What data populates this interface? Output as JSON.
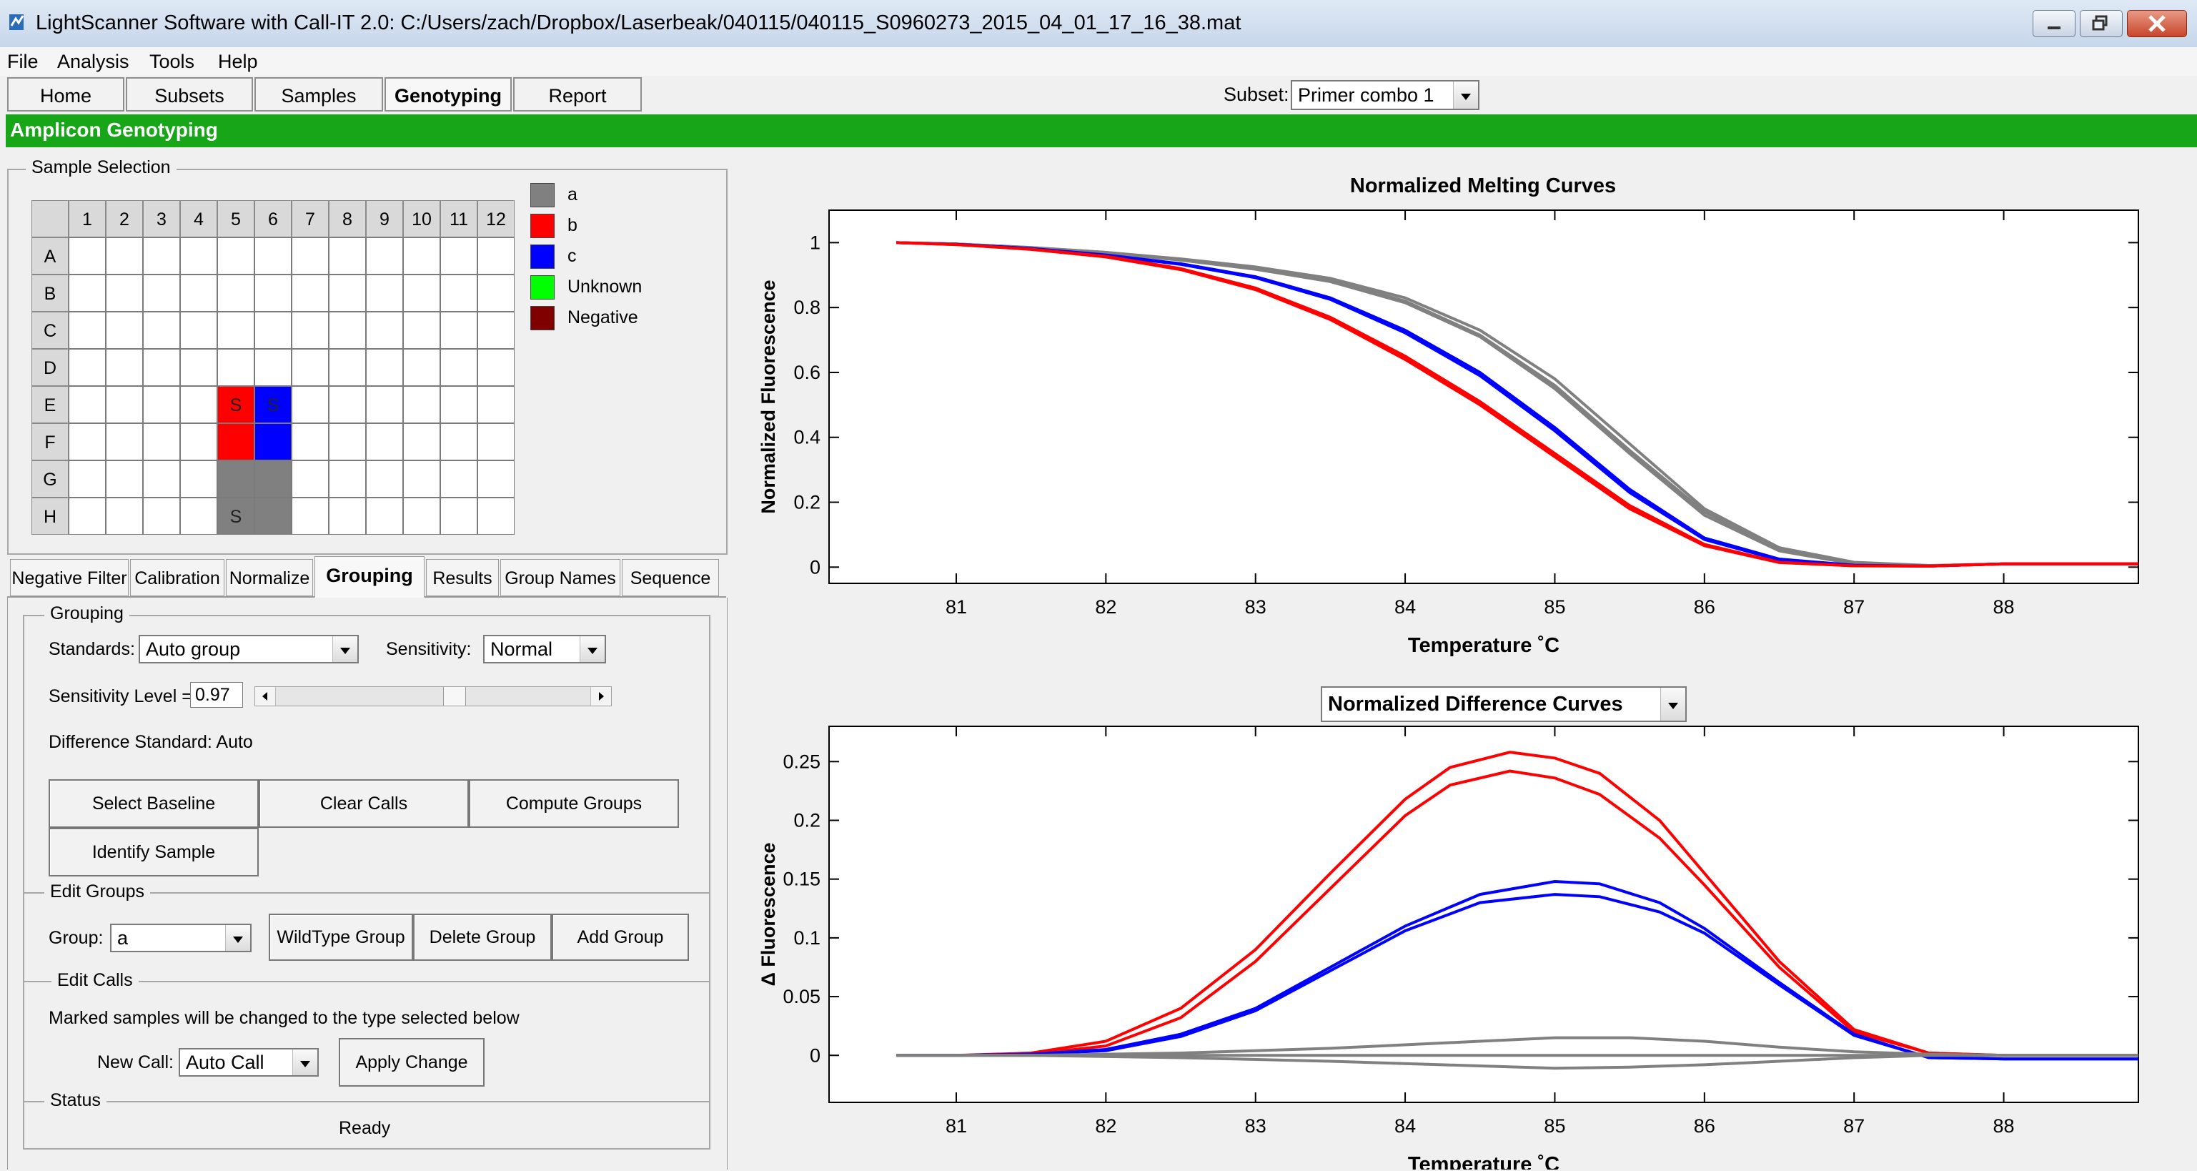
{
  "window": {
    "title": "LightScanner Software with Call-IT 2.0: C:/Users/zach/Dropbox/Laserbeak/040115/040115_S0960273_2015_04_01_17_16_38.mat"
  },
  "menu": [
    "File",
    "Analysis",
    "Tools",
    "Help"
  ],
  "top_tabs": [
    "Home",
    "Subsets",
    "Samples",
    "Genotyping",
    "Report"
  ],
  "active_top_tab": "Genotyping",
  "subset": {
    "label": "Subset:",
    "value": "Primer combo 1"
  },
  "banner": "Amplicon Genotyping",
  "sample_selection": {
    "title": "Sample Selection",
    "columns": [
      "1",
      "2",
      "3",
      "4",
      "5",
      "6",
      "7",
      "8",
      "9",
      "10",
      "11",
      "12"
    ],
    "rows": [
      "A",
      "B",
      "C",
      "D",
      "E",
      "F",
      "G",
      "H"
    ],
    "wells": [
      {
        "row": "E",
        "col": "5",
        "group": "b",
        "mark": "S"
      },
      {
        "row": "E",
        "col": "6",
        "group": "c",
        "mark": "S"
      },
      {
        "row": "F",
        "col": "5",
        "group": "b",
        "mark": ""
      },
      {
        "row": "F",
        "col": "6",
        "group": "c",
        "mark": ""
      },
      {
        "row": "G",
        "col": "5",
        "group": "a",
        "mark": ""
      },
      {
        "row": "G",
        "col": "6",
        "group": "a",
        "mark": ""
      },
      {
        "row": "H",
        "col": "5",
        "group": "a",
        "mark": "S"
      },
      {
        "row": "H",
        "col": "6",
        "group": "a",
        "mark": ""
      }
    ],
    "legend": [
      {
        "label": "a",
        "color": "#808080"
      },
      {
        "label": "b",
        "color": "#ff0000"
      },
      {
        "label": "c",
        "color": "#0000ff"
      },
      {
        "label": "Unknown",
        "color": "#00ff00"
      },
      {
        "label": "Negative",
        "color": "#800000"
      }
    ]
  },
  "analysis_tabs": [
    "Negative Filter",
    "Calibration",
    "Normalize",
    "Grouping",
    "Results",
    "Group Names",
    "Sequence"
  ],
  "active_analysis_tab": "Grouping",
  "grouping": {
    "title": "Grouping",
    "standards_label": "Standards:",
    "standards_value": "Auto group",
    "sensitivity_label": "Sensitivity:",
    "sensitivity_value": "Normal",
    "sensitivity_level_label": "Sensitivity Level =",
    "sensitivity_level_value": "0.97",
    "sensitivity_slider_fraction": 0.57,
    "difference_standard": "Difference Standard:  Auto",
    "buttons": {
      "select_baseline": "Select Baseline",
      "clear_calls": "Clear Calls",
      "compute_groups": "Compute Groups",
      "identify_sample": "Identify Sample"
    }
  },
  "edit_groups": {
    "title": "Edit Groups",
    "group_label": "Group:",
    "group_value": "a",
    "buttons": {
      "wildtype": "WildType Group",
      "delete": "Delete Group",
      "add": "Add Group"
    }
  },
  "edit_calls": {
    "title": "Edit Calls",
    "note": "Marked samples will be changed to the type selected below",
    "new_call_label": "New Call:",
    "new_call_value": "Auto Call",
    "apply_label": "Apply Change"
  },
  "status": {
    "title": "Status",
    "text": "Ready"
  },
  "chart_data": [
    {
      "type": "line",
      "title": "Normalized Melting Curves",
      "xlabel": "Temperature ˚C",
      "ylabel": "Normalized Fluorescence",
      "xlim": [
        80.15,
        88.9
      ],
      "ylim": [
        -0.05,
        1.1
      ],
      "xticks": [
        81,
        82,
        83,
        84,
        85,
        86,
        87,
        88
      ],
      "yticks": [
        0,
        0.2,
        0.4,
        0.6,
        0.8,
        1
      ],
      "ytick_labels": [
        "0",
        "0.2",
        "0.4",
        "0.6",
        "0.8",
        "1"
      ],
      "series": [
        {
          "group": "a",
          "color": "#808080",
          "x": [
            80.6,
            81,
            81.5,
            82,
            82.5,
            83,
            83.5,
            84,
            84.5,
            85,
            85.5,
            86,
            86.5,
            87,
            87.5,
            88,
            88.9
          ],
          "y": [
            1,
            0.996,
            0.985,
            0.97,
            0.95,
            0.925,
            0.89,
            0.83,
            0.73,
            0.58,
            0.38,
            0.18,
            0.06,
            0.015,
            0.005,
            0.01,
            0.01
          ]
        },
        {
          "group": "a",
          "color": "#808080",
          "x": [
            80.6,
            81,
            81.5,
            82,
            82.5,
            83,
            83.5,
            84,
            84.5,
            85,
            85.5,
            86,
            86.5,
            87,
            87.5,
            88,
            88.9
          ],
          "y": [
            1,
            0.996,
            0.985,
            0.97,
            0.948,
            0.92,
            0.884,
            0.82,
            0.715,
            0.56,
            0.36,
            0.17,
            0.055,
            0.012,
            0.004,
            0.01,
            0.01
          ]
        },
        {
          "group": "a",
          "color": "#808080",
          "x": [
            80.6,
            81,
            81.5,
            82,
            82.5,
            83,
            83.5,
            84,
            84.5,
            85,
            85.5,
            86,
            86.5,
            87,
            87.5,
            88,
            88.9
          ],
          "y": [
            1,
            0.996,
            0.984,
            0.968,
            0.946,
            0.918,
            0.88,
            0.815,
            0.71,
            0.55,
            0.35,
            0.16,
            0.05,
            0.01,
            0.004,
            0.01,
            0.01
          ]
        },
        {
          "group": "c",
          "color": "#0000ff",
          "x": [
            80.6,
            81,
            81.5,
            82,
            82.5,
            83,
            83.5,
            84,
            84.5,
            85,
            85.5,
            86,
            86.5,
            87,
            87.5,
            88,
            88.9
          ],
          "y": [
            1,
            0.995,
            0.982,
            0.962,
            0.935,
            0.895,
            0.83,
            0.73,
            0.6,
            0.43,
            0.24,
            0.09,
            0.025,
            0.006,
            0.003,
            0.01,
            0.01
          ]
        },
        {
          "group": "c",
          "color": "#0000ff",
          "x": [
            80.6,
            81,
            81.5,
            82,
            82.5,
            83,
            83.5,
            84,
            84.5,
            85,
            85.5,
            86,
            86.5,
            87,
            87.5,
            88,
            88.9
          ],
          "y": [
            1,
            0.995,
            0.982,
            0.961,
            0.933,
            0.892,
            0.825,
            0.722,
            0.59,
            0.42,
            0.23,
            0.085,
            0.022,
            0.005,
            0.003,
            0.01,
            0.01
          ]
        },
        {
          "group": "b",
          "color": "#ff0000",
          "x": [
            80.6,
            81,
            81.5,
            82,
            82.5,
            83,
            83.5,
            84,
            84.5,
            85,
            85.5,
            86,
            86.5,
            87,
            87.5,
            88,
            88.9
          ],
          "y": [
            1,
            0.994,
            0.98,
            0.958,
            0.92,
            0.86,
            0.77,
            0.65,
            0.51,
            0.35,
            0.19,
            0.07,
            0.015,
            0.004,
            0.003,
            0.01,
            0.01
          ]
        },
        {
          "group": "b",
          "color": "#ff0000",
          "x": [
            80.6,
            81,
            81.5,
            82,
            82.5,
            83,
            83.5,
            84,
            84.5,
            85,
            85.5,
            86,
            86.5,
            87,
            87.5,
            88,
            88.9
          ],
          "y": [
            1,
            0.994,
            0.979,
            0.956,
            0.917,
            0.855,
            0.763,
            0.64,
            0.5,
            0.34,
            0.18,
            0.066,
            0.014,
            0.004,
            0.003,
            0.01,
            0.01
          ]
        }
      ]
    },
    {
      "type": "line",
      "title": "Normalized Difference Curves",
      "xlabel": "Temperature ˚C",
      "ylabel": "Δ Fluorescence",
      "xlim": [
        80.15,
        88.9
      ],
      "ylim": [
        -0.04,
        0.28
      ],
      "xticks": [
        81,
        82,
        83,
        84,
        85,
        86,
        87,
        88
      ],
      "yticks": [
        0,
        0.05,
        0.1,
        0.15,
        0.2,
        0.25
      ],
      "ytick_labels": [
        "0",
        "0.05",
        "0.1",
        "0.15",
        "0.2",
        "0.25"
      ],
      "series": [
        {
          "group": "b",
          "color": "#ff0000",
          "x": [
            80.6,
            81,
            81.5,
            82,
            82.5,
            83,
            83.5,
            84,
            84.3,
            84.7,
            85,
            85.3,
            85.7,
            86,
            86.5,
            87,
            87.5,
            88,
            88.9
          ],
          "y": [
            0,
            0,
            0.002,
            0.012,
            0.04,
            0.09,
            0.155,
            0.218,
            0.245,
            0.258,
            0.253,
            0.24,
            0.2,
            0.155,
            0.08,
            0.022,
            0.002,
            0,
            0
          ]
        },
        {
          "group": "b",
          "color": "#ff0000",
          "x": [
            80.6,
            81,
            81.5,
            82,
            82.5,
            83,
            83.5,
            84,
            84.3,
            84.7,
            85,
            85.3,
            85.7,
            86,
            86.5,
            87,
            87.5,
            88,
            88.9
          ],
          "y": [
            0,
            0,
            0.001,
            0.008,
            0.032,
            0.08,
            0.142,
            0.204,
            0.23,
            0.242,
            0.236,
            0.222,
            0.185,
            0.145,
            0.075,
            0.02,
            0.002,
            0,
            0
          ]
        },
        {
          "group": "c",
          "color": "#0000ff",
          "x": [
            80.6,
            81,
            81.5,
            82,
            82.5,
            83,
            83.5,
            84,
            84.5,
            85,
            85.3,
            85.7,
            86,
            86.5,
            87,
            87.5,
            88,
            88.9
          ],
          "y": [
            0,
            0,
            0.001,
            0.005,
            0.018,
            0.04,
            0.075,
            0.11,
            0.137,
            0.148,
            0.146,
            0.13,
            0.108,
            0.062,
            0.018,
            -0.002,
            -0.003,
            -0.003
          ]
        },
        {
          "group": "c",
          "color": "#0000ff",
          "x": [
            80.6,
            81,
            81.5,
            82,
            82.5,
            83,
            83.5,
            84,
            84.5,
            85,
            85.3,
            85.7,
            86,
            86.5,
            87,
            87.5,
            88,
            88.9
          ],
          "y": [
            0,
            0,
            0.001,
            0.004,
            0.016,
            0.038,
            0.072,
            0.106,
            0.13,
            0.137,
            0.135,
            0.122,
            0.104,
            0.06,
            0.017,
            -0.002,
            -0.003,
            -0.003
          ]
        },
        {
          "group": "a",
          "color": "#808080",
          "x": [
            80.6,
            81.5,
            82.5,
            83.5,
            84.5,
            85,
            85.5,
            86,
            86.5,
            87,
            87.5,
            88,
            88.9
          ],
          "y": [
            0,
            0,
            0.002,
            0.006,
            0.012,
            0.015,
            0.015,
            0.012,
            0.007,
            0.003,
            0.001,
            0,
            0
          ]
        },
        {
          "group": "a",
          "color": "#808080",
          "x": [
            80.6,
            81.5,
            82.5,
            83.5,
            84.5,
            85,
            85.5,
            86,
            86.5,
            87,
            87.5,
            88,
            88.9
          ],
          "y": [
            0,
            0,
            0,
            0,
            0,
            0,
            0,
            0,
            0,
            0,
            0,
            0,
            0
          ]
        },
        {
          "group": "a",
          "color": "#808080",
          "x": [
            80.6,
            81.5,
            82.5,
            83.5,
            84.5,
            85,
            85.5,
            86,
            86.5,
            87,
            87.5,
            88,
            88.9
          ],
          "y": [
            0,
            0,
            -0.002,
            -0.005,
            -0.009,
            -0.011,
            -0.01,
            -0.008,
            -0.005,
            -0.002,
            0,
            0,
            0
          ]
        }
      ]
    }
  ]
}
